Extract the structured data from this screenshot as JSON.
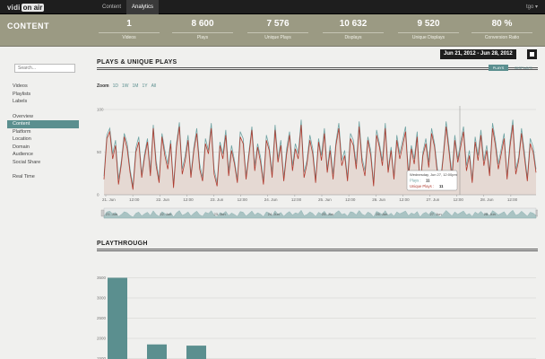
{
  "topbar": {
    "logo_left": "vidi",
    "logo_right": "on air",
    "nav": [
      {
        "label": "Content",
        "active": false
      },
      {
        "label": "Analytics",
        "active": true
      }
    ],
    "user": "tgo ▾"
  },
  "header": {
    "title": "CONTENT",
    "stats": [
      {
        "value": "1",
        "label": "Videos"
      },
      {
        "value": "8 600",
        "label": "Plays"
      },
      {
        "value": "7 576",
        "label": "Unique Plays"
      },
      {
        "value": "10 632",
        "label": "Displays"
      },
      {
        "value": "9 520",
        "label": "Unique Displays"
      },
      {
        "value": "80 %",
        "label": "Conversion Ratio"
      }
    ]
  },
  "date_range": "Jun 21, 2012 - Jun 28, 2012",
  "search": {
    "placeholder": "Search..."
  },
  "sidebar": {
    "group1": [
      "Videos",
      "Playlists",
      "Labels"
    ],
    "group2": [
      "Overview",
      "Content",
      "Platform",
      "Location",
      "Domain",
      "Audience",
      "Social Share"
    ],
    "active": "Content",
    "group3": [
      "Real Time"
    ]
  },
  "plays_section": {
    "title": "PLAYS & UNIQUE PLAYS",
    "toggle_plays": "PLAYS",
    "toggle_displays": "DISPLAYS",
    "zoom_label": "Zoom",
    "zoom_options": [
      "1D",
      "1W",
      "1M",
      "1Y",
      "All"
    ],
    "tooltip": {
      "date": "Wednesday, Jun 27, 12:00pm",
      "plays_label": "Plays :",
      "plays_value": "11",
      "unique_label": "Unique Plays :",
      "unique_value": "11"
    }
  },
  "playthrough_section": {
    "title": "PLAYTHROUGH"
  },
  "colors": {
    "accent": "#5b8f8f",
    "plays_line": "#6fa3a3",
    "unique_line": "#b03a2e",
    "header_bg": "#9b9a83"
  },
  "chart_data": [
    {
      "type": "line",
      "y_ticks": [
        "100",
        "50",
        "0"
      ],
      "ylim": [
        0,
        100
      ],
      "x_tick_labels": [
        "21. Jun",
        "12:00",
        "22. Jun",
        "12:00",
        "23. Jun",
        "12:00",
        "24. Jun",
        "12:00",
        "25. Jun",
        "12:00",
        "26. Jun",
        "12:00",
        "27. Jun",
        "12:00",
        "28. Jun",
        "12:00"
      ],
      "navigator_labels": [
        "21. Jun",
        "22. Jun",
        "23. Jun",
        "24. Jun",
        "25. Jun",
        "26. Jun",
        "27. Jun",
        "28. Jun"
      ],
      "series": [
        {
          "name": "Plays",
          "values": [
            22,
            70,
            78,
            48,
            64,
            18,
            40,
            72,
            60,
            30,
            10,
            55,
            68,
            24,
            48,
            66,
            28,
            82,
            40,
            18,
            72,
            52,
            36,
            64,
            12,
            60,
            85,
            30,
            46,
            70,
            24,
            56,
            78,
            36,
            20,
            66,
            52,
            84,
            30,
            14,
            62,
            48,
            76,
            28,
            58,
            40,
            18,
            74,
            66,
            22,
            50,
            80,
            34,
            60,
            44,
            16,
            70,
            56,
            26,
            82,
            42,
            64,
            20,
            54,
            74,
            34,
            60,
            48,
            88,
            26,
            40,
            70,
            54,
            18,
            66,
            46,
            78,
            30,
            58,
            24,
            62,
            84,
            40,
            52,
            20,
            72,
            64,
            36,
            86,
            44,
            28,
            68,
            52,
            14,
            76,
            60,
            40,
            84,
            30,
            56,
            22,
            70,
            48,
            64,
            80,
            26,
            58,
            42,
            74,
            12,
            50,
            66,
            38,
            78,
            60,
            30,
            14,
            48,
            86,
            56,
            24,
            70,
            42,
            62,
            80,
            34,
            52,
            18,
            68,
            46,
            76,
            40,
            58,
            26,
            84,
            64,
            36,
            54,
            72,
            22,
            62,
            88,
            30,
            44,
            78,
            50,
            20,
            66,
            56,
            30
          ],
          "color": "#6fa3a3"
        },
        {
          "name": "Unique Plays",
          "values": [
            18,
            66,
            74,
            42,
            58,
            12,
            36,
            68,
            54,
            26,
            6,
            50,
            62,
            20,
            44,
            62,
            22,
            78,
            34,
            14,
            68,
            46,
            30,
            60,
            8,
            56,
            80,
            24,
            40,
            64,
            20,
            52,
            72,
            30,
            16,
            60,
            48,
            78,
            24,
            10,
            58,
            42,
            70,
            22,
            52,
            36,
            14,
            68,
            60,
            18,
            46,
            76,
            28,
            56,
            38,
            12,
            64,
            52,
            20,
            76,
            38,
            58,
            16,
            48,
            70,
            28,
            54,
            42,
            82,
            20,
            36,
            64,
            48,
            14,
            62,
            40,
            72,
            26,
            52,
            18,
            58,
            78,
            34,
            46,
            16,
            66,
            58,
            30,
            80,
            38,
            22,
            64,
            46,
            10,
            70,
            56,
            34,
            78,
            26,
            52,
            18,
            64,
            42,
            58,
            74,
            20,
            54,
            36,
            68,
            8,
            46,
            60,
            32,
            72,
            56,
            24,
            10,
            44,
            80,
            50,
            18,
            64,
            38,
            56,
            74,
            28,
            46,
            14,
            62,
            40,
            70,
            34,
            52,
            22,
            78,
            58,
            30,
            48,
            66,
            18,
            56,
            82,
            24,
            40,
            72,
            44,
            16,
            60,
            50,
            26
          ],
          "color": "#b03a2e"
        }
      ]
    },
    {
      "type": "bar",
      "title": "PLAYTHROUGH",
      "y_ticks": [
        "3500",
        "3000",
        "2500",
        "2000",
        "1500"
      ],
      "ylim": [
        1400,
        3600
      ],
      "values": [
        3500,
        1850,
        1820
      ],
      "color": "#5b8f8f"
    }
  ]
}
